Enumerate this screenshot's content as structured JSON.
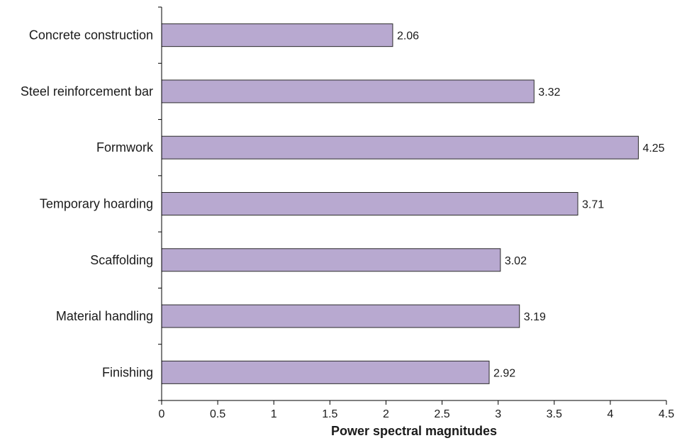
{
  "chart_data": {
    "type": "bar",
    "orientation": "horizontal",
    "title": "",
    "xlabel": "Power spectral magnitudes",
    "ylabel": "",
    "xlim": [
      0,
      4.5
    ],
    "xticks": [
      0,
      0.5,
      1,
      1.5,
      2,
      2.5,
      3,
      3.5,
      4,
      4.5
    ],
    "xtick_labels": [
      "0",
      "0.5",
      "1",
      "1.5",
      "2",
      "2.5",
      "3",
      "3.5",
      "4",
      "4.5"
    ],
    "categories": [
      "Concrete construction",
      "Steel reinforcement bar",
      "Formwork",
      "Temporary hoarding",
      "Scaffolding",
      "Material handling",
      "Finishing"
    ],
    "values": [
      2.06,
      3.32,
      4.25,
      3.71,
      3.02,
      3.19,
      2.92
    ],
    "value_labels": [
      "2.06",
      "3.32",
      "4.25",
      "3.71",
      "3.02",
      "3.19",
      "2.92"
    ],
    "grid": false,
    "legend": "none",
    "bar_color": "#b8a9d0",
    "bar_edge_color": "#2b2b2b"
  }
}
